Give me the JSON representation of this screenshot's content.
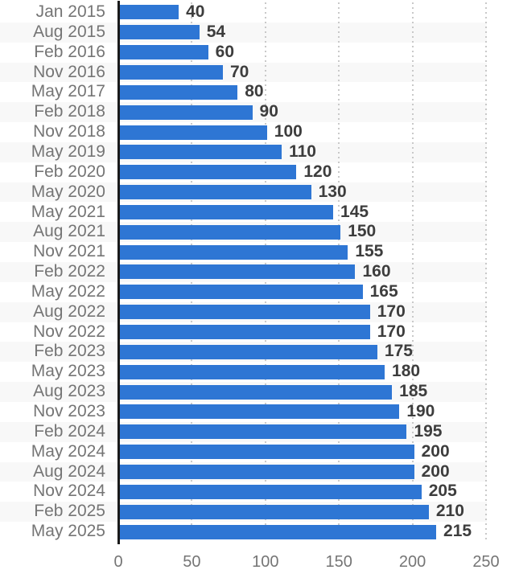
{
  "chart_data": {
    "type": "bar",
    "orientation": "horizontal",
    "title": "",
    "xlabel": "",
    "ylabel": "",
    "categories": [
      "Jan 2015",
      "Aug 2015",
      "Feb 2016",
      "Nov 2016",
      "May 2017",
      "Feb 2018",
      "Nov 2018",
      "May 2019",
      "Feb 2020",
      "May 2020",
      "May 2021",
      "Aug 2021",
      "Nov 2021",
      "Feb 2022",
      "May 2022",
      "Aug 2022",
      "Nov 2022",
      "Feb 2023",
      "May 2023",
      "Aug 2023",
      "Nov 2023",
      "Feb 2024",
      "May 2024",
      "Aug 2024",
      "Nov 2024",
      "Feb 2025",
      "May 2025"
    ],
    "values": [
      40,
      54,
      60,
      70,
      80,
      90,
      100,
      110,
      120,
      130,
      145,
      150,
      155,
      160,
      165,
      170,
      170,
      175,
      180,
      185,
      190,
      195,
      200,
      200,
      205,
      210,
      215
    ],
    "data_labels": [
      "40",
      "54",
      "60",
      "70",
      "80",
      "90",
      "100",
      "110",
      "120",
      "130",
      "145",
      "150",
      "155",
      "160",
      "165",
      "170",
      "170",
      "175",
      "180",
      "185",
      "190",
      "195",
      "200",
      "200",
      "205",
      "210",
      "215"
    ],
    "xticks": [
      0,
      50,
      100,
      150,
      200,
      250
    ],
    "xtick_labels": [
      "0",
      "50",
      "100",
      "150",
      "200",
      "250"
    ],
    "xlim": [
      0,
      250
    ],
    "legend": "none",
    "grid": "dotted-vertical",
    "row_striping": "alternating",
    "colors": {
      "bar": "#2e76d4",
      "category_label": "#757575",
      "value_label": "#3d3d3d",
      "tick_label": "#757575",
      "stripe": "#f8f8f8",
      "gridline": "#c9c9c9",
      "axis_line": "#1a1a1a",
      "background": "#ffffff"
    }
  }
}
